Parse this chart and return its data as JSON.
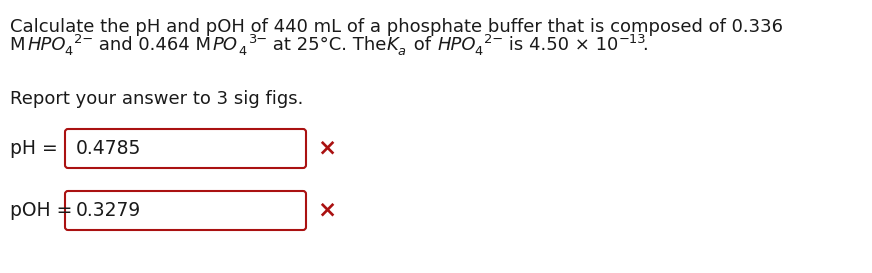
{
  "line1": "Calculate the pH and pOH of 440 mL of a phosphate buffer that is composed of 0.336",
  "line3": "Report your answer to 3 sig figs.",
  "ph_label": "pH = ",
  "ph_value": "0.4785",
  "poh_label": "pOH = ",
  "poh_value": "0.3279",
  "bg_color": "#ffffff",
  "text_color": "#1a1a1a",
  "box_color": "#aa1111",
  "x_color": "#aa1111",
  "font_size": 13.0,
  "label_font_size": 13.5,
  "font_family": "DejaVu Sans"
}
